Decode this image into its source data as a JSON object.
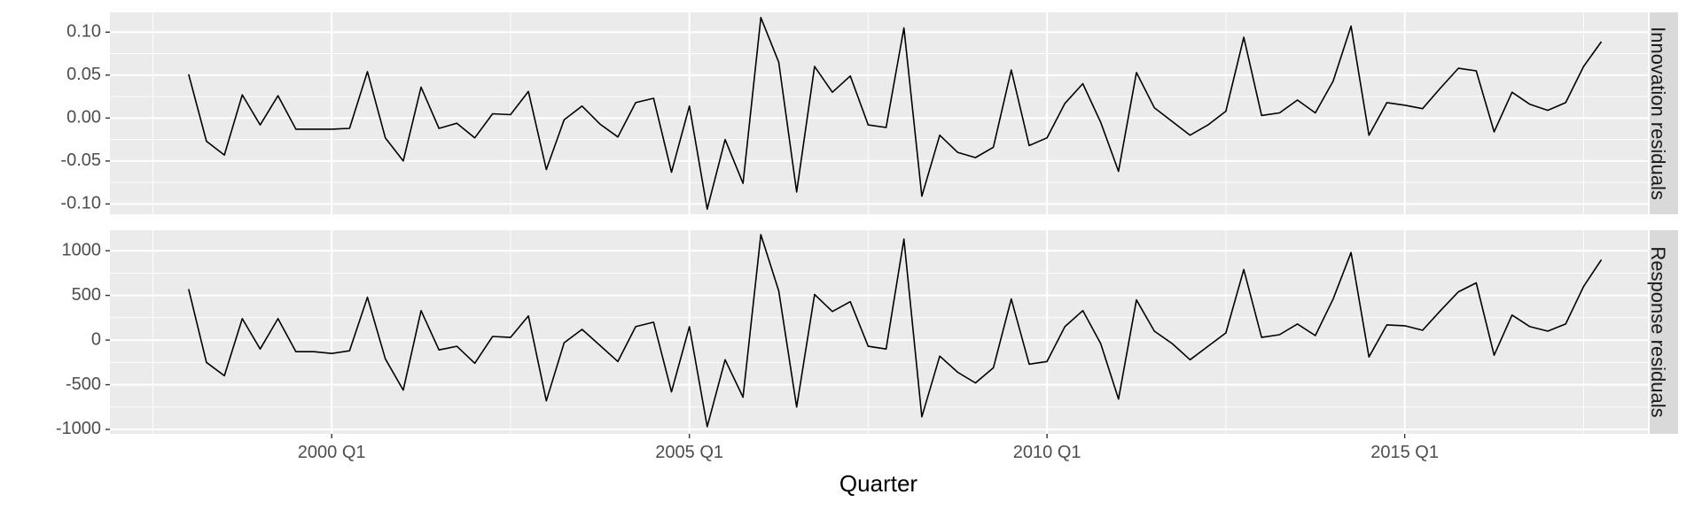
{
  "chart_data": {
    "type": "line",
    "xlabel": "Quarter",
    "x_ticks": [
      "2000 Q1",
      "2005 Q1",
      "2010 Q1",
      "2015 Q1"
    ],
    "x_start": 1998.0,
    "x_step": 0.25,
    "xlim": [
      1996.9,
      2018.4
    ],
    "grid": true,
    "colors": {
      "panel_bg": "#ebebeb",
      "grid": "#ffffff",
      "strip_bg": "#d9d9d9",
      "line": "#000000"
    },
    "panels": [
      {
        "strip": "Innovation residuals",
        "ylim": [
          -0.112,
          0.123
        ],
        "y_ticks": [
          0.1,
          0.05,
          0.0,
          -0.05,
          -0.1
        ],
        "y_tick_labels": [
          "0.10",
          "0.05",
          "0.00",
          "-0.05",
          "-0.10"
        ],
        "values": [
          0.051,
          -0.027,
          -0.043,
          0.027,
          -0.008,
          0.026,
          -0.013,
          -0.013,
          -0.013,
          -0.012,
          0.054,
          -0.023,
          -0.05,
          0.036,
          -0.012,
          -0.006,
          -0.023,
          0.005,
          0.004,
          0.031,
          -0.06,
          -0.002,
          0.014,
          -0.007,
          -0.022,
          0.018,
          0.023,
          -0.063,
          0.014,
          -0.106,
          -0.025,
          -0.076,
          0.117,
          0.065,
          -0.086,
          0.06,
          0.03,
          0.049,
          -0.008,
          -0.011,
          0.105,
          -0.091,
          -0.02,
          -0.04,
          -0.046,
          -0.034,
          0.056,
          -0.032,
          -0.023,
          0.017,
          0.04,
          -0.005,
          -0.062,
          0.053,
          0.012,
          -0.004,
          -0.02,
          -0.008,
          0.008,
          0.094,
          0.003,
          0.006,
          0.021,
          0.006,
          0.043,
          0.107,
          -0.02,
          0.018,
          0.015,
          0.011,
          0.035,
          0.058,
          0.055,
          -0.016,
          0.03,
          0.016,
          0.009,
          0.018,
          0.06,
          0.089
        ]
      },
      {
        "strip": "Response residuals",
        "ylim": [
          -1050,
          1230
        ],
        "y_ticks": [
          1000,
          500,
          0,
          -500,
          -1000
        ],
        "y_tick_labels": [
          "1000",
          "500",
          "0",
          "-500",
          "-1000"
        ],
        "values": [
          570,
          -250,
          -400,
          240,
          -100,
          240,
          -130,
          -130,
          -150,
          -120,
          480,
          -210,
          -560,
          330,
          -110,
          -70,
          -260,
          40,
          30,
          270,
          -680,
          -30,
          120,
          -60,
          -240,
          150,
          200,
          -580,
          150,
          -970,
          -220,
          -640,
          1180,
          550,
          -750,
          510,
          320,
          430,
          -70,
          -100,
          1130,
          -860,
          -180,
          -360,
          -480,
          -310,
          460,
          -270,
          -240,
          150,
          330,
          -40,
          -660,
          450,
          100,
          -40,
          -220,
          -70,
          80,
          790,
          30,
          60,
          180,
          50,
          460,
          980,
          -190,
          170,
          160,
          110,
          330,
          540,
          640,
          -170,
          280,
          150,
          100,
          180,
          600,
          900
        ]
      }
    ]
  }
}
